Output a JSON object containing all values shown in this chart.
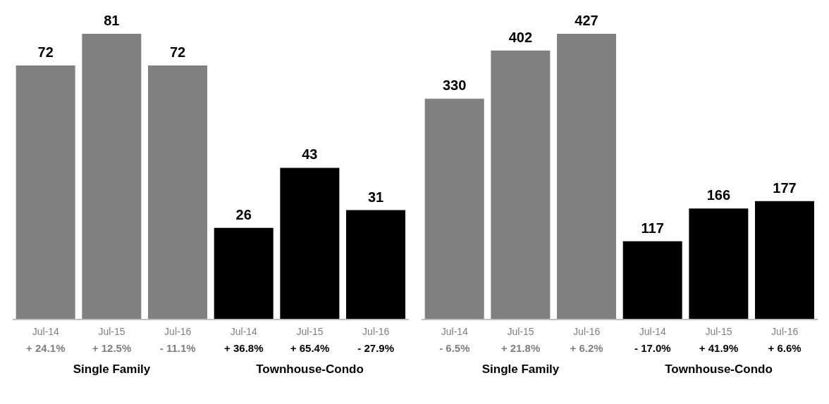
{
  "chart_data": [
    {
      "type": "bar",
      "categories": [
        "Jul-14",
        "Jul-15",
        "Jul-16",
        "Jul-14",
        "Jul-15",
        "Jul-16"
      ],
      "values": [
        72,
        81,
        72,
        26,
        43,
        31
      ],
      "colors": [
        "#808080",
        "#808080",
        "#808080",
        "#000000",
        "#000000",
        "#000000"
      ],
      "data_labels": true,
      "annotations": [
        "+ 24.1%",
        "+ 12.5%",
        "- 11.1%",
        "+ 36.8%",
        "+ 65.4%",
        "- 27.9%",
        "Single Family",
        "Townhouse-Condo"
      ]
    },
    {
      "type": "bar",
      "categories": [
        "Jul-14",
        "Jul-15",
        "Jul-16",
        "Jul-14",
        "Jul-15",
        "Jul-16"
      ],
      "values": [
        330,
        402,
        427,
        117,
        166,
        177
      ],
      "colors": [
        "#808080",
        "#808080",
        "#808080",
        "#000000",
        "#000000",
        "#000000"
      ],
      "data_labels": true,
      "annotations": [
        "- 6.5%",
        "+ 21.8%",
        "+ 6.2%",
        "- 17.0%",
        "+ 41.9%",
        "+ 6.6%",
        "Single Family",
        "Townhouse-Condo"
      ]
    }
  ]
}
